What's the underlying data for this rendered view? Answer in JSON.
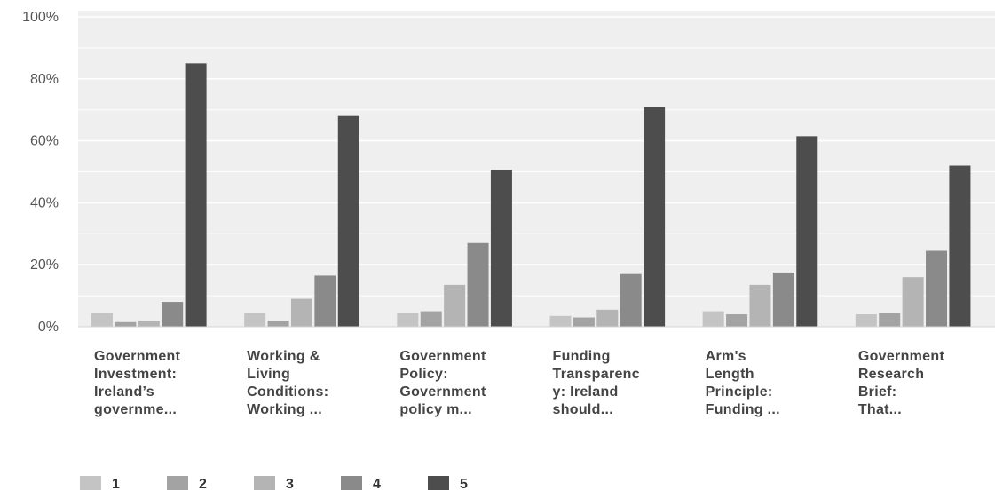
{
  "chart_data": {
    "type": "bar",
    "categories": [
      [
        "Government",
        "Investment:",
        "Ireland’s",
        "governme..."
      ],
      [
        "Working &",
        "Living",
        "Conditions:",
        "Working ..."
      ],
      [
        "Government",
        "Policy:",
        "Government",
        "policy m..."
      ],
      [
        "Funding",
        "Transparenc",
        "y: Ireland",
        "should..."
      ],
      [
        "Arm's",
        "Length",
        "Principle:",
        "Funding ..."
      ],
      [
        "Government",
        "Research",
        "Brief:",
        "That..."
      ]
    ],
    "series": [
      {
        "name": "1",
        "color": "#c4c4c4",
        "values": [
          4.5,
          4.5,
          4.5,
          3.5,
          5,
          4
        ]
      },
      {
        "name": "2",
        "color": "#a3a3a3",
        "values": [
          1.5,
          2,
          5,
          3,
          4,
          4.5
        ]
      },
      {
        "name": "3",
        "color": "#b4b4b4",
        "values": [
          2,
          9,
          13.5,
          5.5,
          13.5,
          16
        ]
      },
      {
        "name": "4",
        "color": "#8a8a8a",
        "values": [
          8,
          16.5,
          27,
          17,
          17.5,
          24.5
        ]
      },
      {
        "name": "5",
        "color": "#4d4d4d",
        "values": [
          85,
          68,
          50.5,
          71,
          61.5,
          52
        ]
      }
    ],
    "yticks": [
      "0%",
      "20%",
      "40%",
      "60%",
      "80%",
      "100%"
    ],
    "ylim": [
      0,
      100
    ],
    "grid": true,
    "legend": "bottom-left"
  }
}
